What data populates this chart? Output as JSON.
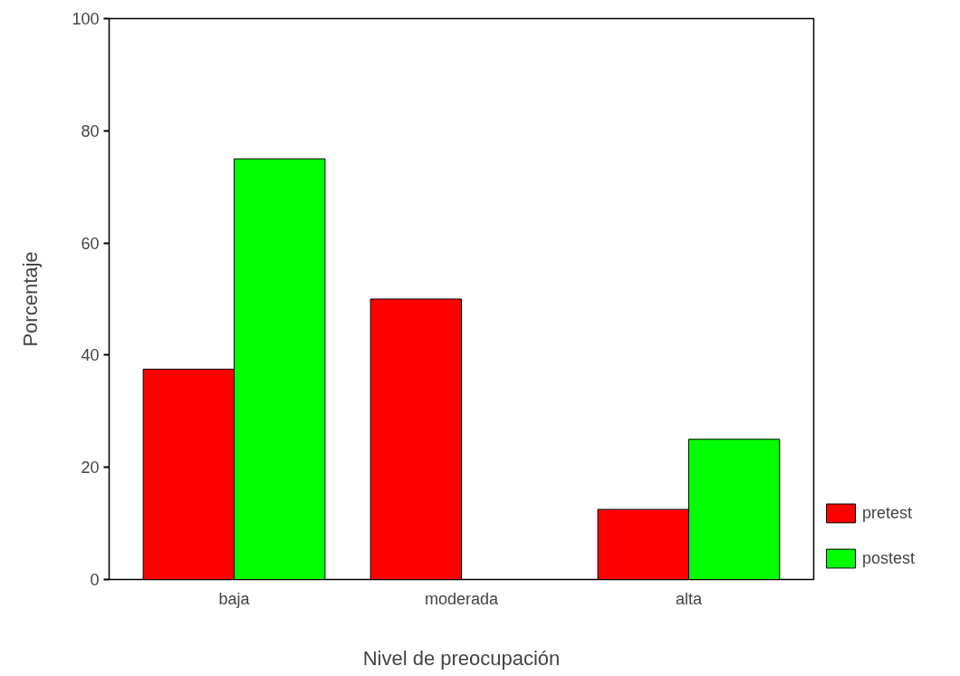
{
  "chart_data": {
    "type": "bar",
    "xlabel": "Nivel de preocupación",
    "ylabel": "Porcentaje",
    "categories": [
      "baja",
      "moderada",
      "alta"
    ],
    "series": [
      {
        "name": "pretest",
        "color": "#ff0000",
        "values": [
          37.5,
          50,
          12.5
        ]
      },
      {
        "name": "postest",
        "color": "#00ff00",
        "values": [
          75,
          0,
          25
        ]
      }
    ],
    "ylim": [
      0,
      100
    ],
    "yticks": [
      0,
      20,
      40,
      60,
      80,
      100
    ],
    "grid": false,
    "legend": "bottom right"
  }
}
